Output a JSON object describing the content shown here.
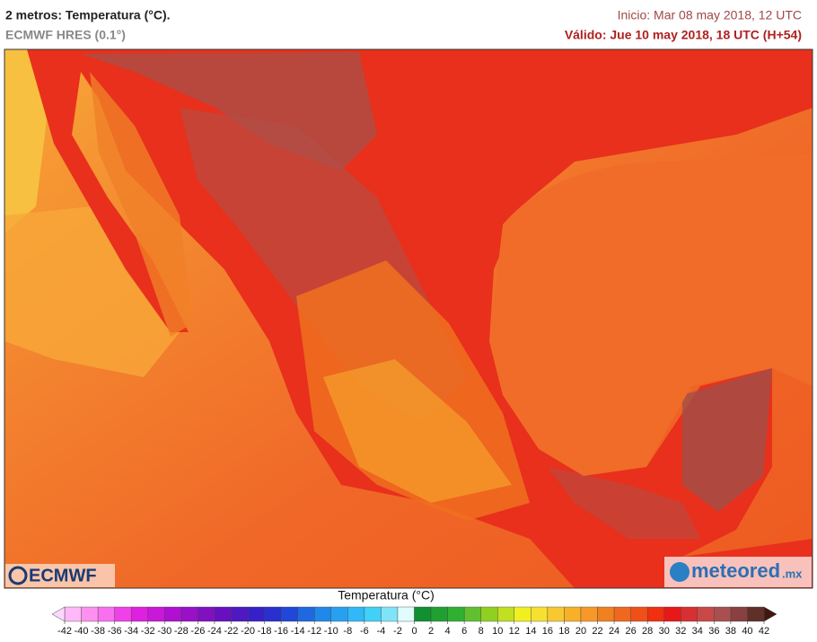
{
  "header": {
    "title": "2 metros: Temperatura (°C).",
    "subtitle": "ECMWF HRES (0.1°)",
    "init": "Inicio: Mar 08 may 2018, 12 UTC",
    "valid": "Válido: Jue 10 may 2018, 18 UTC (H+54)"
  },
  "logos": {
    "left": "ECMWF",
    "right": "meteored",
    "right_suffix": ".mx"
  },
  "legend": {
    "title": "Temperatura (°C)",
    "ticks": [
      -42,
      -40,
      -38,
      -36,
      -34,
      -32,
      -30,
      -28,
      -26,
      -24,
      -22,
      -20,
      -18,
      -16,
      -14,
      -12,
      -10,
      -8,
      -6,
      -4,
      -2,
      0,
      2,
      4,
      6,
      8,
      10,
      12,
      14,
      16,
      18,
      20,
      22,
      24,
      26,
      28,
      30,
      32,
      34,
      36,
      38,
      40,
      42
    ],
    "colors": [
      "#ffb8f8",
      "#ff90f0",
      "#f870f0",
      "#f040e8",
      "#e020e0",
      "#c818d8",
      "#b010d0",
      "#9810c8",
      "#8010c0",
      "#6810c0",
      "#5018c0",
      "#3820c8",
      "#2830d0",
      "#2048d8",
      "#2068e0",
      "#2088e8",
      "#28a0f0",
      "#30b8f8",
      "#40d0f8",
      "#80e4f8",
      "#e0fcfc",
      "#109030",
      "#20a030",
      "#30b030",
      "#60c030",
      "#90d020",
      "#c0e020",
      "#f0f020",
      "#f8e030",
      "#f8c830",
      "#f8b028",
      "#f89828",
      "#f08020",
      "#f06820",
      "#f05018",
      "#f03010",
      "#e81818",
      "#d83030",
      "#c84848",
      "#a85050",
      "#884040",
      "#603028"
    ],
    "under_color": "#ffd8ff",
    "over_color": "#401810"
  }
}
